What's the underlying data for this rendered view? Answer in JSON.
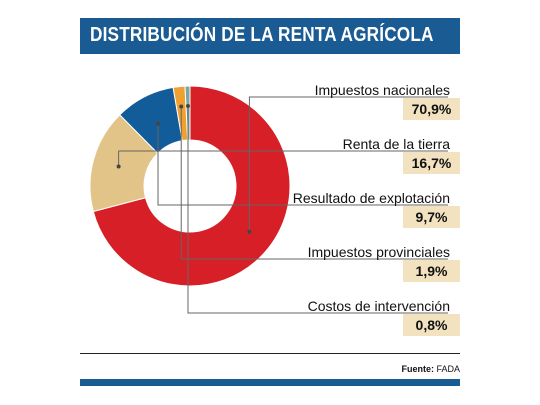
{
  "title": "DISTRIBUCIÓN DE LA RENTA AGRÍCOLA",
  "source_label": "Fuente:",
  "source_value": "FADA",
  "chart_data": {
    "type": "pie",
    "donut": true,
    "title": "DISTRIBUCIÓN DE LA RENTA AGRÍCOLA",
    "categories": [
      "Impuestos nacionales",
      "Renta de la tierra",
      "Resultado de explotación",
      "Impuestos provinciales",
      "Costos de intervención"
    ],
    "values": [
      70.9,
      16.7,
      9.7,
      1.9,
      0.8
    ],
    "value_labels": [
      "70,9%",
      "16,7%",
      "9,7%",
      "1,9%",
      "0,8%"
    ],
    "colors": [
      "#d71f27",
      "#e3c488",
      "#125c9a",
      "#f0a030",
      "#7aa7a0"
    ],
    "legend": "right"
  }
}
